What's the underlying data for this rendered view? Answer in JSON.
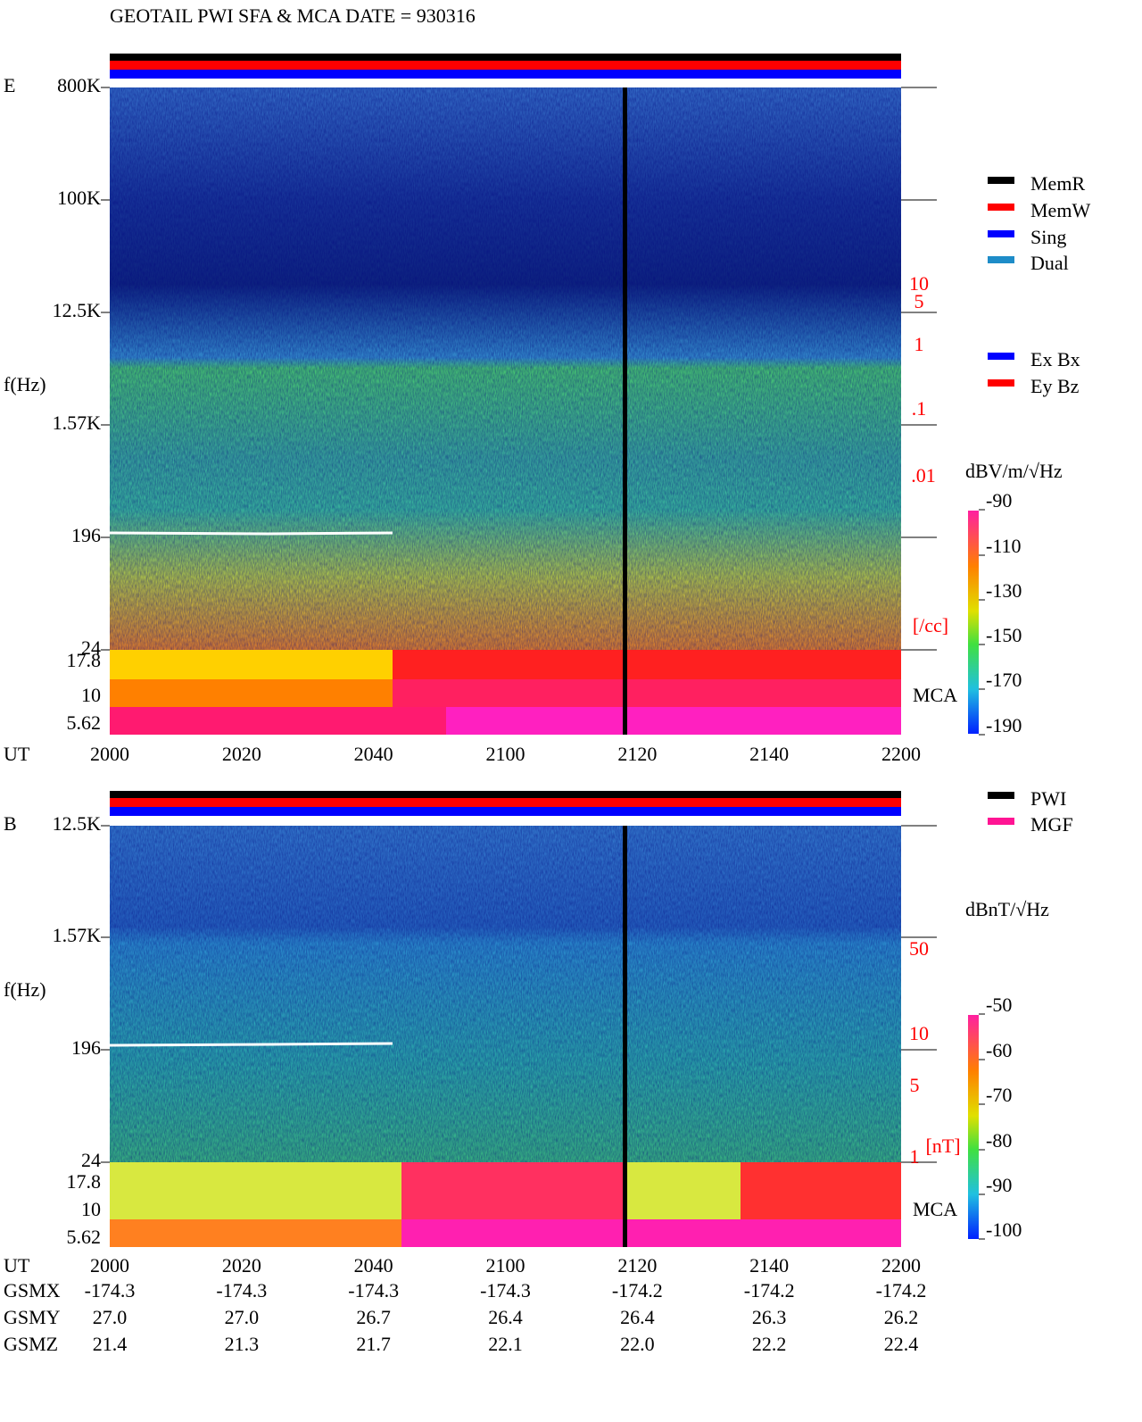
{
  "title": "GEOTAIL  PWI SFA & MCA   DATE = 930316",
  "panels": [
    {
      "label": "E",
      "ylabel": "f(Hz)",
      "yticks": [
        "800K",
        "100K",
        "12.5K",
        "1.57K",
        "196",
        "24",
        "17.8",
        "10",
        "5.62"
      ],
      "right_ticks": [
        "10",
        "5",
        "1",
        ".1",
        ".01",
        "[/cc]"
      ],
      "mca": "MCA",
      "colorbar": {
        "unit": "dBV/m/√Hz",
        "ticks": [
          "-90",
          "-110",
          "-130",
          "-150",
          "-170",
          "-190"
        ]
      }
    },
    {
      "label": "B",
      "ylabel": "f(Hz)",
      "yticks": [
        "12.5K",
        "1.57K",
        "196",
        "24",
        "17.8",
        "10",
        "5.62"
      ],
      "right_ticks": [
        "50",
        "10",
        "5",
        "1",
        "[nT]"
      ],
      "mca": "MCA",
      "colorbar": {
        "unit": "dBnT/√Hz",
        "ticks": [
          "-50",
          "-60",
          "-70",
          "-80",
          "-90",
          "-100"
        ]
      }
    }
  ],
  "xaxis": {
    "label": "UT",
    "ticks": [
      "2000",
      "2020",
      "2040",
      "2100",
      "2120",
      "2140",
      "2200"
    ]
  },
  "legend_mode": [
    {
      "name": "MemR",
      "color": "#000000"
    },
    {
      "name": "MemW",
      "color": "#ff0000"
    },
    {
      "name": "Sing",
      "color": "#0000ff"
    },
    {
      "name": "Dual",
      "color": "#1e8cc8"
    }
  ],
  "legend_ant": [
    {
      "name": "Ex Bx",
      "color": "#0000ff"
    },
    {
      "name": "Ey Bz",
      "color": "#ff0000"
    }
  ],
  "legend_src": [
    {
      "name": "PWI",
      "color": "#000000"
    },
    {
      "name": "MGF",
      "color": "#ff1493"
    }
  ],
  "orbit": [
    {
      "label": "GSMX",
      "values": [
        "-174.3",
        "-174.3",
        "-174.3",
        "-174.3",
        "-174.2",
        "-174.2",
        "-174.2"
      ]
    },
    {
      "label": "GSMY",
      "values": [
        "27.0",
        "27.0",
        "26.7",
        "26.4",
        "26.4",
        "26.3",
        "26.2"
      ]
    },
    {
      "label": "GSMZ",
      "values": [
        "21.4",
        "21.3",
        "21.7",
        "22.1",
        "22.0",
        "22.2",
        "22.4"
      ]
    }
  ]
}
